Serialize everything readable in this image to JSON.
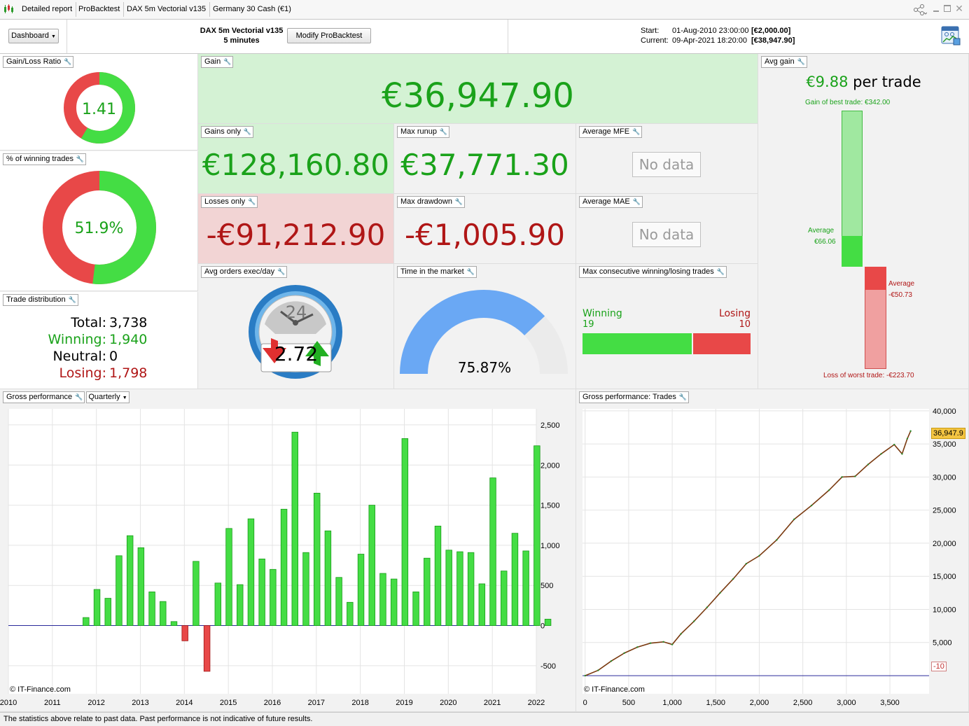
{
  "tabs": [
    "Detailed report",
    "ProBacktest",
    "DAX 5m Vectorial v135",
    "Germany 30 Cash (€1)"
  ],
  "header": {
    "dashboard_label": "Dashboard",
    "strategy_name": "DAX 5m Vectorial v135",
    "timeframe": "5 minutes",
    "modify_label": "Modify ProBacktest",
    "start_label": "Start:",
    "start_date": "01-Aug-2010 23:00:00",
    "start_value": "[€2,000.00]",
    "current_label": "Current:",
    "current_date": "09-Apr-2021 18:20:00",
    "current_value": "[€38,947.90]"
  },
  "panels": {
    "gain_loss_ratio": {
      "label": "Gain/Loss Ratio",
      "value": "1.41",
      "win_fraction": 0.585
    },
    "pct_winning": {
      "label": "% of winning trades",
      "value": "51.9%",
      "win_fraction": 0.519
    },
    "trade_distribution": {
      "label": "Trade distribution",
      "total_label": "Total:",
      "total": "3,738",
      "winning_label": "Winning:",
      "winning": "1,940",
      "neutral_label": "Neutral:",
      "neutral": "0",
      "losing_label": "Losing:",
      "losing": "1,798"
    },
    "gain": {
      "label": "Gain",
      "value": "€36,947.90"
    },
    "gains_only": {
      "label": "Gains only",
      "value": "€128,160.80"
    },
    "max_runup": {
      "label": "Max runup",
      "value": "€37,771.30"
    },
    "average_mfe": {
      "label": "Average MFE",
      "value": "No data"
    },
    "losses_only": {
      "label": "Losses only",
      "value": "-€91,212.90"
    },
    "max_drawdown": {
      "label": "Max drawdown",
      "value": "-€1,005.90"
    },
    "average_mae": {
      "label": "Average MAE",
      "value": "No data"
    },
    "avg_orders": {
      "label": "Avg orders exec/day",
      "clock_number": "24",
      "value": "2.72"
    },
    "time_in_market": {
      "label": "Time in the market",
      "value": "75.87%",
      "fraction": 0.7587
    },
    "max_consecutive": {
      "label": "Max consecutive winning/losing trades",
      "winning_label": "Winning",
      "winning": "19",
      "losing_label": "Losing",
      "losing": "10"
    },
    "avg_gain": {
      "label": "Avg gain",
      "per_trade_value": "€9.88",
      "per_trade_text": "per trade",
      "best_trade": "Gain of best trade: €342.00",
      "average_label": "Average",
      "avg_win": "€66.06",
      "avg_loss": "-€50.73",
      "worst_trade": "Loss of worst trade: -€223.70"
    }
  },
  "gross_performance": {
    "label": "Gross performance",
    "period_label": "Quarterly",
    "copyright": "© IT-Finance.com"
  },
  "gross_trades": {
    "label": "Gross performance: Trades",
    "copyright": "© IT-Finance.com",
    "last_value_label": "36,947.9",
    "start_value_label": "-10"
  },
  "footer_text": "The statistics above relate to past data. Past performance is not indicative of future results.",
  "colors": {
    "win": "#44dd44",
    "loss": "#e84848",
    "gain_bg": "#d4f2d4",
    "loss_bg": "#f2d4d4"
  },
  "chart_data": [
    {
      "type": "bar",
      "title": "Gross performance",
      "x_start": 2010,
      "x_step": 0.25,
      "xticks": [
        2010,
        2011,
        2012,
        2013,
        2014,
        2015,
        2016,
        2017,
        2018,
        2019,
        2020,
        2021,
        2022
      ],
      "xlim": [
        2010,
        2022
      ],
      "ylim": [
        -850,
        2700
      ],
      "yticks": [
        -500,
        0,
        500,
        1000,
        1500,
        2000,
        2500
      ],
      "values": [
        0,
        0,
        0,
        0,
        0,
        0,
        0,
        100,
        450,
        340,
        870,
        1120,
        970,
        420,
        300,
        50,
        -190,
        800,
        -570,
        530,
        1210,
        510,
        1330,
        830,
        700,
        1450,
        2410,
        910,
        1650,
        1180,
        600,
        290,
        890,
        1500,
        650,
        580,
        2330,
        420,
        840,
        1240,
        940,
        920,
        910,
        520,
        1840,
        680,
        1150,
        930,
        2240,
        80
      ]
    },
    {
      "type": "line",
      "title": "Gross performance: Trades",
      "xlim": [
        -30,
        3950
      ],
      "ylim": [
        -2750,
        40300
      ],
      "xticks": [
        0,
        500,
        1000,
        1500,
        2000,
        2500,
        3000,
        3500
      ],
      "yticks": [
        5000,
        10000,
        15000,
        20000,
        25000,
        30000,
        35000,
        40000
      ],
      "x": [
        0,
        150,
        300,
        450,
        600,
        750,
        900,
        1000,
        1100,
        1250,
        1400,
        1550,
        1700,
        1850,
        2000,
        2200,
        2400,
        2600,
        2800,
        2950,
        3100,
        3250,
        3400,
        3550,
        3640,
        3700,
        3738
      ],
      "y": [
        -10,
        800,
        2200,
        3400,
        4300,
        4900,
        5100,
        4700,
        6300,
        8200,
        10300,
        12500,
        14600,
        16900,
        18100,
        20500,
        23600,
        25700,
        28000,
        30000,
        30100,
        31900,
        33500,
        34900,
        33500,
        35800,
        36947.9
      ]
    }
  ]
}
